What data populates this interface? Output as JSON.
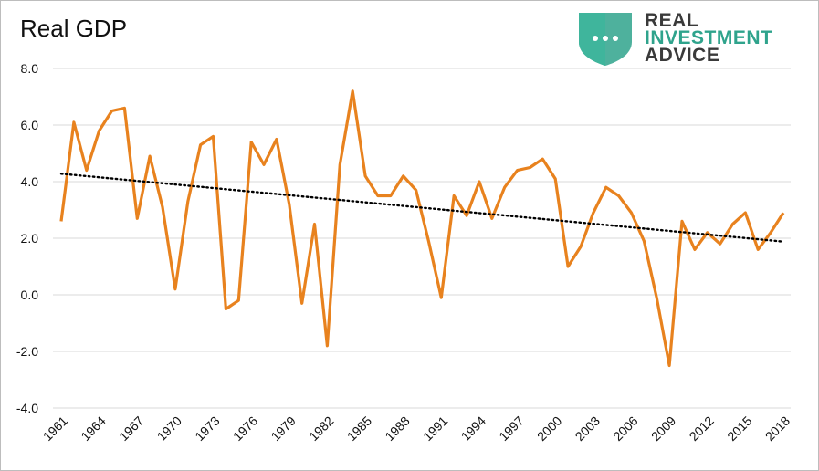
{
  "chart_data": {
    "type": "line",
    "title": "Real GDP",
    "xlabel": "",
    "ylabel": "",
    "ylim": [
      -4.0,
      8.0
    ],
    "y_ticks": [
      "8.0",
      "6.0",
      "4.0",
      "2.0",
      "0.0",
      "-2.0",
      "-4.0"
    ],
    "y_tick_values": [
      8,
      6,
      4,
      2,
      0,
      -2,
      -4
    ],
    "x_tick_labels": [
      "1961",
      "1964",
      "1967",
      "1970",
      "1973",
      "1976",
      "1979",
      "1982",
      "1985",
      "1988",
      "1991",
      "1994",
      "1997",
      "2000",
      "2003",
      "2006",
      "2009",
      "2012",
      "2015",
      "2018"
    ],
    "grid": true,
    "legend": "none",
    "x": [
      1961,
      1962,
      1963,
      1964,
      1965,
      1966,
      1967,
      1968,
      1969,
      1970,
      1971,
      1972,
      1973,
      1974,
      1975,
      1976,
      1977,
      1978,
      1979,
      1980,
      1981,
      1982,
      1983,
      1984,
      1985,
      1986,
      1987,
      1988,
      1989,
      1990,
      1991,
      1992,
      1993,
      1994,
      1995,
      1996,
      1997,
      1998,
      1999,
      2000,
      2001,
      2002,
      2003,
      2004,
      2005,
      2006,
      2007,
      2008,
      2009,
      2010,
      2011,
      2012,
      2013,
      2014,
      2015,
      2016,
      2017,
      2018
    ],
    "series": [
      {
        "values": [
          2.6,
          6.1,
          4.4,
          5.8,
          6.5,
          6.6,
          2.7,
          4.9,
          3.1,
          0.2,
          3.3,
          5.3,
          5.6,
          -0.5,
          -0.2,
          5.4,
          4.6,
          5.5,
          3.2,
          -0.3,
          2.5,
          -1.8,
          4.6,
          7.2,
          4.2,
          3.5,
          3.5,
          4.2,
          3.7,
          1.9,
          -0.1,
          3.5,
          2.8,
          4.0,
          2.7,
          3.8,
          4.4,
          4.5,
          4.8,
          4.1,
          1.0,
          1.7,
          2.9,
          3.8,
          3.5,
          2.9,
          1.9,
          -0.1,
          -2.5,
          2.6,
          1.6,
          2.2,
          1.8,
          2.5,
          2.9,
          1.6,
          2.2,
          2.9
        ],
        "color": "#e8821e"
      },
      {
        "style": "dotted",
        "x": [
          1961,
          2018
        ],
        "values": [
          4.28,
          1.88
        ],
        "color": "#000000"
      }
    ]
  },
  "logo": {
    "line1": "REAL",
    "line2": "INVESTMENT",
    "line3": "ADVICE",
    "shield_color": "#2fa38c",
    "accent_color": "#2fa38c"
  }
}
